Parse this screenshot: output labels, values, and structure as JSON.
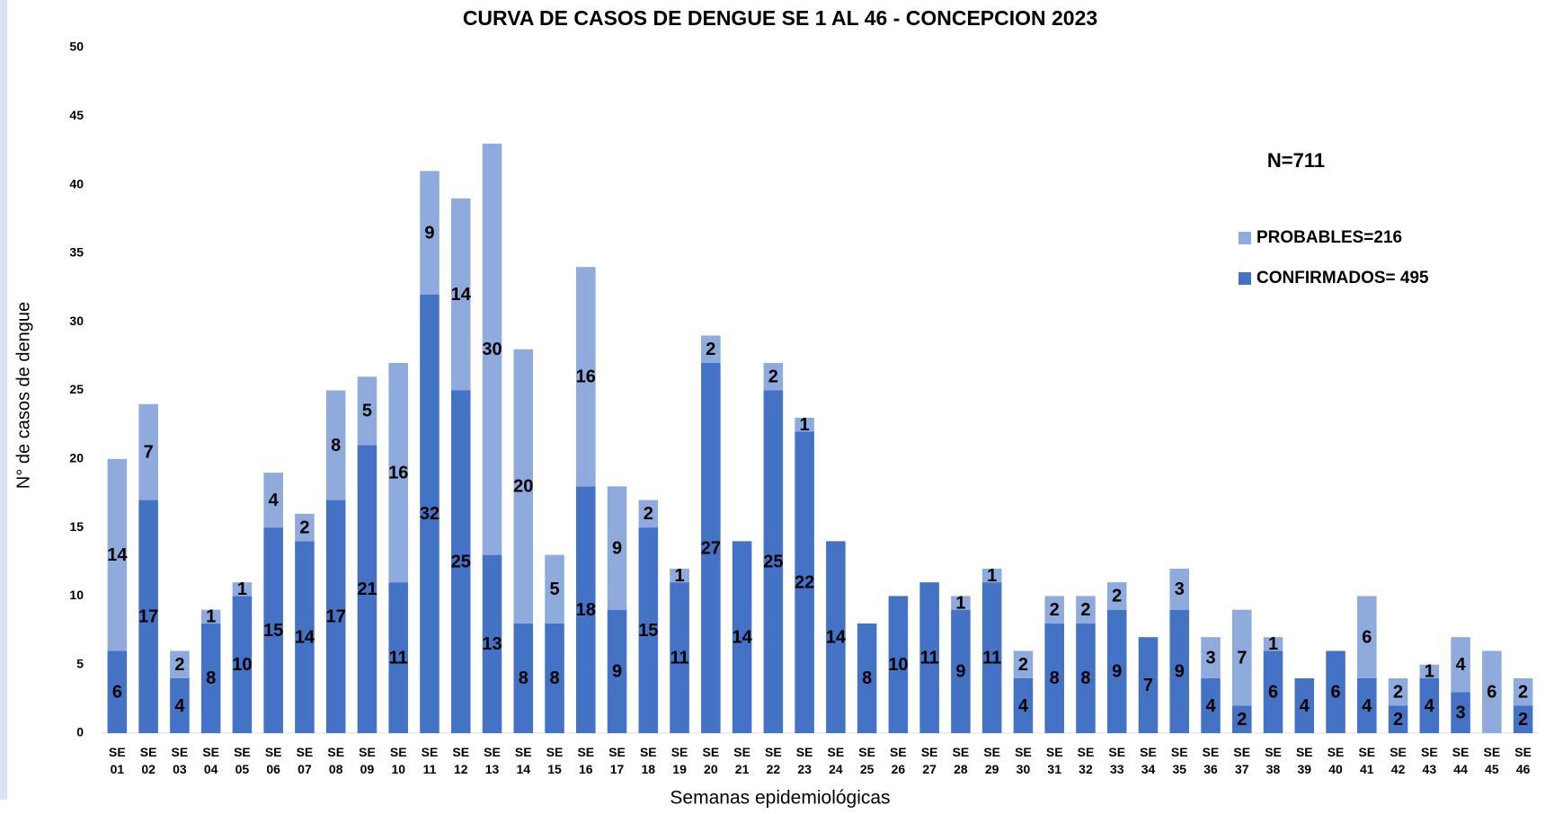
{
  "chart_data": {
    "type": "stacked_bar",
    "title": "CURVA DE CASOS DE DENGUE SE 1 AL 46 - CONCEPCION 2023",
    "x_label": "Semanas epidemiológicas",
    "y_label": "N° de casos de dengue",
    "annotation": "N=711",
    "categories": [
      "SE 01",
      "SE 02",
      "SE 03",
      "SE 04",
      "SE 05",
      "SE 06",
      "SE 07",
      "SE 08",
      "SE 09",
      "SE 10",
      "SE 11",
      "SE 12",
      "SE 13",
      "SE 14",
      "SE 15",
      "SE 16",
      "SE 17",
      "SE 18",
      "SE 19",
      "SE 20",
      "SE 21",
      "SE 22",
      "SE 23",
      "SE 24",
      "SE 25",
      "SE 26",
      "SE 27",
      "SE 28",
      "SE 29",
      "SE 30",
      "SE 31",
      "SE 32",
      "SE 33",
      "SE 34",
      "SE 35",
      "SE 36",
      "SE 37",
      "SE 38",
      "SE 39",
      "SE 40",
      "SE 41",
      "SE 42",
      "SE 43",
      "SE 44",
      "SE 45",
      "SE 46"
    ],
    "series": [
      {
        "name": "CONFIRMADOS= 495",
        "color": "#4472c4",
        "values": [
          6,
          17,
          4,
          8,
          10,
          15,
          14,
          17,
          21,
          11,
          32,
          25,
          13,
          8,
          8,
          18,
          9,
          15,
          11,
          27,
          14,
          25,
          22,
          14,
          8,
          10,
          11,
          9,
          11,
          4,
          8,
          8,
          9,
          7,
          9,
          4,
          2,
          6,
          4,
          6,
          4,
          2,
          4,
          3,
          null,
          2
        ]
      },
      {
        "name": "PROBABLES=216",
        "color": "#8faadc",
        "values": [
          14,
          7,
          2,
          1,
          1,
          4,
          2,
          8,
          5,
          16,
          9,
          14,
          30,
          20,
          5,
          16,
          9,
          2,
          1,
          2,
          null,
          2,
          1,
          null,
          null,
          null,
          null,
          1,
          1,
          2,
          2,
          2,
          2,
          null,
          3,
          3,
          7,
          1,
          null,
          null,
          6,
          2,
          1,
          4,
          6,
          2
        ]
      }
    ],
    "ylim": [
      0,
      50
    ],
    "yticks": [
      0,
      5,
      10,
      15,
      20,
      25,
      30,
      35,
      40,
      45,
      50
    ],
    "grid": false
  }
}
